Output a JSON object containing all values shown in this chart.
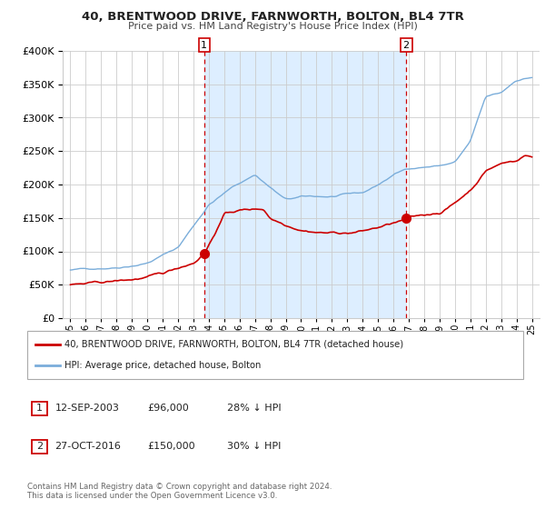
{
  "title1": "40, BRENTWOOD DRIVE, FARNWORTH, BOLTON, BL4 7TR",
  "title2": "Price paid vs. HM Land Registry's House Price Index (HPI)",
  "legend_line1": "40, BRENTWOOD DRIVE, FARNWORTH, BOLTON, BL4 7TR (detached house)",
  "legend_line2": "HPI: Average price, detached house, Bolton",
  "annotation1_label": "1",
  "annotation1_date": "12-SEP-2003",
  "annotation1_price": "£96,000",
  "annotation1_hpi": "28% ↓ HPI",
  "annotation1_year": 2003.7,
  "annotation1_value": 96000,
  "annotation2_label": "2",
  "annotation2_date": "27-OCT-2016",
  "annotation2_price": "£150,000",
  "annotation2_hpi": "30% ↓ HPI",
  "annotation2_year": 2016.83,
  "annotation2_value": 150000,
  "red_line_color": "#cc0000",
  "blue_line_color": "#7aadda",
  "shade_color": "#ddeeff",
  "background_color": "#ffffff",
  "grid_color": "#cccccc",
  "footer_text": "Contains HM Land Registry data © Crown copyright and database right 2024.\nThis data is licensed under the Open Government Licence v3.0.",
  "ylim": [
    0,
    400000
  ],
  "xlim_start": 1994.5,
  "xlim_end": 2025.5
}
